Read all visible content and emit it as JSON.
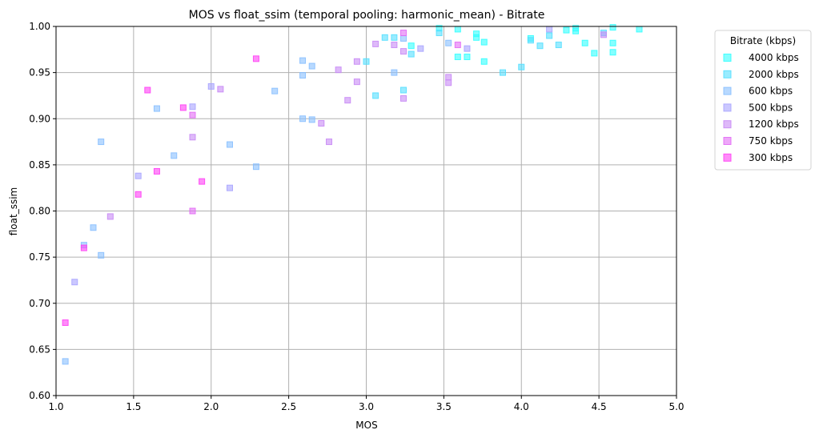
{
  "chart_data": {
    "type": "scatter",
    "title": "MOS vs float_ssim (temporal pooling: harmonic_mean) - Bitrate",
    "xlabel": "MOS",
    "ylabel": "float_ssim",
    "xlim": [
      1.0,
      5.0
    ],
    "ylim": [
      0.6,
      1.0
    ],
    "xticks": [
      "1.0",
      "1.5",
      "2.0",
      "2.5",
      "3.0",
      "3.5",
      "4.0",
      "4.5",
      "5.0"
    ],
    "yticks": [
      "0.60",
      "0.65",
      "0.70",
      "0.75",
      "0.80",
      "0.85",
      "0.90",
      "0.95",
      "1.00"
    ],
    "grid": true,
    "marker": "square",
    "legend": {
      "title": "Bitrate (kbps)",
      "position": "outside-upper-right"
    },
    "series": [
      {
        "name": "4000 kbps",
        "color": "#33ffff",
        "points": [
          [
            3.47,
            0.998
          ],
          [
            3.59,
            0.997
          ],
          [
            3.71,
            0.992
          ],
          [
            3.71,
            0.988
          ],
          [
            3.76,
            0.983
          ],
          [
            4.06,
            0.987
          ],
          [
            4.29,
            0.996
          ],
          [
            4.35,
            0.998
          ],
          [
            4.41,
            0.982
          ],
          [
            4.47,
            0.971
          ],
          [
            4.59,
            0.999
          ],
          [
            4.59,
            0.982
          ],
          [
            4.59,
            0.972
          ],
          [
            4.76,
            0.997
          ],
          [
            3.59,
            0.967
          ],
          [
            3.65,
            0.967
          ],
          [
            3.76,
            0.962
          ],
          [
            4.35,
            0.995
          ],
          [
            3.29,
            0.979
          ]
        ]
      },
      {
        "name": "2000 kbps",
        "color": "#55dfff",
        "points": [
          [
            3.47,
            0.993
          ],
          [
            3.29,
            0.97
          ],
          [
            3.18,
            0.988
          ],
          [
            3.12,
            0.988
          ],
          [
            3.24,
            0.931
          ],
          [
            3.06,
            0.925
          ],
          [
            3.0,
            0.962
          ],
          [
            3.88,
            0.95
          ],
          [
            4.0,
            0.956
          ],
          [
            4.06,
            0.985
          ],
          [
            4.12,
            0.979
          ],
          [
            4.24,
            0.98
          ],
          [
            4.18,
            0.99
          ],
          [
            4.53,
            0.993
          ]
        ]
      },
      {
        "name": "600 kbps",
        "color": "#88bfff",
        "points": [
          [
            1.06,
            0.637
          ],
          [
            1.18,
            0.763
          ],
          [
            1.24,
            0.782
          ],
          [
            1.29,
            0.752
          ],
          [
            1.29,
            0.875
          ],
          [
            1.65,
            0.911
          ],
          [
            1.76,
            0.86
          ],
          [
            2.12,
            0.872
          ],
          [
            2.29,
            0.848
          ],
          [
            2.41,
            0.93
          ],
          [
            2.59,
            0.9
          ],
          [
            2.59,
            0.947
          ],
          [
            2.59,
            0.963
          ],
          [
            2.65,
            0.957
          ],
          [
            2.65,
            0.899
          ],
          [
            3.18,
            0.95
          ],
          [
            3.24,
            0.987
          ],
          [
            3.53,
            0.982
          ]
        ]
      },
      {
        "name": "500 kbps",
        "color": "#a8a4ff",
        "points": [
          [
            1.12,
            0.723
          ],
          [
            1.53,
            0.838
          ],
          [
            1.88,
            0.913
          ],
          [
            2.0,
            0.935
          ],
          [
            2.12,
            0.825
          ],
          [
            3.35,
            0.976
          ],
          [
            3.65,
            0.976
          ],
          [
            4.18,
            0.997
          ]
        ]
      },
      {
        "name": "1200 kbps",
        "color": "#c88af5",
        "points": [
          [
            1.35,
            0.794
          ],
          [
            1.88,
            0.88
          ],
          [
            2.06,
            0.932
          ],
          [
            2.71,
            0.895
          ],
          [
            2.76,
            0.875
          ],
          [
            2.82,
            0.953
          ],
          [
            2.88,
            0.92
          ],
          [
            2.94,
            0.94
          ],
          [
            2.94,
            0.962
          ],
          [
            3.06,
            0.981
          ],
          [
            3.18,
            0.98
          ],
          [
            3.24,
            0.922
          ],
          [
            3.24,
            0.973
          ],
          [
            3.53,
            0.939
          ],
          [
            3.53,
            0.945
          ],
          [
            4.53,
            0.991
          ]
        ]
      },
      {
        "name": "750 kbps",
        "color": "#e26cf5",
        "points": [
          [
            1.88,
            0.8
          ],
          [
            1.88,
            0.904
          ],
          [
            3.24,
            0.993
          ],
          [
            3.59,
            0.98
          ]
        ]
      },
      {
        "name": "300 kbps",
        "color": "#ff40f5",
        "points": [
          [
            1.06,
            0.679
          ],
          [
            1.18,
            0.76
          ],
          [
            1.53,
            0.818
          ],
          [
            1.59,
            0.931
          ],
          [
            1.65,
            0.843
          ],
          [
            1.82,
            0.912
          ],
          [
            1.94,
            0.832
          ],
          [
            2.29,
            0.965
          ]
        ]
      }
    ]
  }
}
